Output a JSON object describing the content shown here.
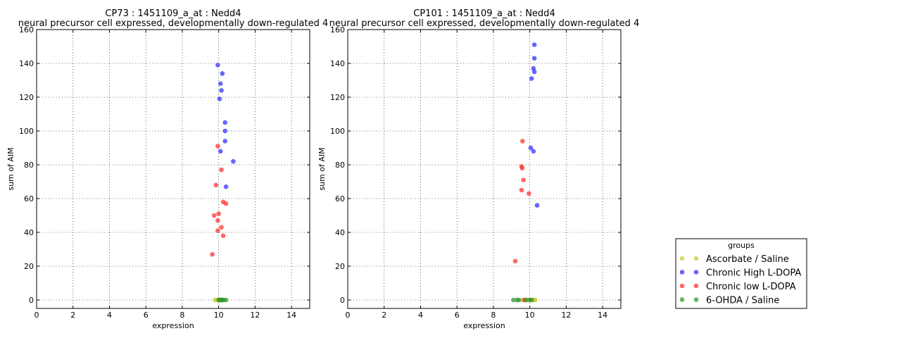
{
  "chart_data": [
    {
      "type": "scatter",
      "title_line1": "CP73 : 1451109_a_at : Nedd4",
      "title_line2": "neural precursor cell expressed, developmentally down-regulated 4",
      "xlabel": "expression",
      "ylabel": "sum of AIM",
      "xlim": [
        0,
        15
      ],
      "ylim": [
        -5,
        160
      ],
      "xticks": [
        "0",
        "2",
        "4",
        "6",
        "8",
        "10",
        "12",
        "14"
      ],
      "yticks": [
        "0",
        "20",
        "40",
        "60",
        "80",
        "100",
        "120",
        "140",
        "160"
      ],
      "grid": true,
      "series": [
        {
          "name": "Ascorbate / Saline",
          "color": "#cccc33",
          "x": [
            9.8,
            9.9,
            10.0,
            10.05,
            10.15,
            10.2,
            10.3
          ],
          "y": [
            0,
            0,
            0,
            0,
            0,
            0,
            0
          ]
        },
        {
          "name": "Chronic High L-DOPA",
          "color": "#3333ff",
          "x": [
            9.95,
            10.2,
            10.1,
            10.15,
            10.05,
            10.35,
            10.35,
            10.35,
            10.1,
            10.8,
            10.4
          ],
          "y": [
            139,
            134,
            128,
            124,
            119,
            105,
            100,
            94,
            88,
            82,
            67
          ]
        },
        {
          "name": "Chronic low L-DOPA",
          "color": "#ff3333",
          "x": [
            9.95,
            10.15,
            9.85,
            10.25,
            10.4,
            9.75,
            10.0,
            9.95,
            10.15,
            9.95,
            10.25,
            9.65
          ],
          "y": [
            91,
            77,
            68,
            58,
            57,
            50,
            51,
            47,
            43,
            41,
            38,
            27
          ]
        },
        {
          "name": "6-OHDA / Saline",
          "color": "#339933",
          "x": [
            10.0,
            10.05,
            10.1,
            10.15,
            10.2,
            10.25,
            10.4
          ],
          "y": [
            0,
            0,
            0,
            0,
            0,
            0,
            0
          ]
        }
      ]
    },
    {
      "type": "scatter",
      "title_line1": "CP101 : 1451109_a_at : Nedd4",
      "title_line2": "neural precursor cell expressed, developmentally down-regulated 4",
      "xlabel": "expression",
      "ylabel": "sum of AIM",
      "xlim": [
        0,
        15
      ],
      "ylim": [
        -5,
        160
      ],
      "xticks": [
        "0",
        "2",
        "4",
        "6",
        "8",
        "10",
        "12",
        "14"
      ],
      "yticks": [
        "0",
        "20",
        "40",
        "60",
        "80",
        "100",
        "120",
        "140",
        "160"
      ],
      "grid": true,
      "series": [
        {
          "name": "Ascorbate / Saline",
          "color": "#cccc33",
          "x": [
            9.6,
            9.75,
            9.85,
            10.0,
            10.15,
            10.25,
            10.3
          ],
          "y": [
            0,
            0,
            0,
            0,
            0,
            0,
            0
          ]
        },
        {
          "name": "Chronic High L-DOPA",
          "color": "#3333ff",
          "x": [
            10.25,
            10.25,
            10.2,
            10.25,
            10.1,
            10.05,
            10.2,
            10.4
          ],
          "y": [
            151,
            143,
            137,
            135,
            131,
            90,
            88,
            56
          ]
        },
        {
          "name": "Chronic low L-DOPA",
          "color": "#ff3333",
          "x": [
            9.6,
            9.55,
            9.58,
            9.65,
            9.55,
            9.95,
            9.2,
            9.7
          ],
          "y": [
            94,
            79,
            78,
            71,
            65,
            63,
            23,
            0
          ]
        },
        {
          "name": "6-OHDA / Saline",
          "color": "#339933",
          "x": [
            9.1,
            9.3,
            9.4,
            9.8,
            10.0,
            10.1
          ],
          "y": [
            0,
            0,
            0,
            0,
            0,
            0
          ]
        }
      ]
    }
  ],
  "legend": {
    "title": "groups",
    "placement": "lower-right outside",
    "items": [
      {
        "label": "Ascorbate / Saline",
        "color": "#cccc33"
      },
      {
        "label": "Chronic High L-DOPA",
        "color": "#3333ff"
      },
      {
        "label": "Chronic low L-DOPA",
        "color": "#ff3333"
      },
      {
        "label": "6-OHDA / Saline",
        "color": "#339933"
      }
    ]
  }
}
